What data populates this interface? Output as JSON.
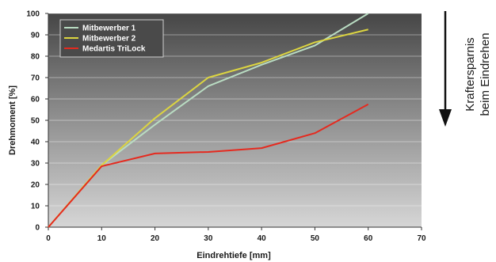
{
  "chart_data": {
    "type": "line",
    "xlabel": "Eindrehtiefe [mm]",
    "ylabel": "Drehmoment [%]",
    "xlim": [
      0,
      70
    ],
    "ylim": [
      0,
      100
    ],
    "x_ticks": [
      0,
      10,
      20,
      30,
      40,
      50,
      60,
      70
    ],
    "y_ticks": [
      0,
      10,
      20,
      30,
      40,
      50,
      60,
      70,
      80,
      90,
      100
    ],
    "grid": true,
    "legend_position": "top-left",
    "background": "vertical gradient, dark grey at top to light grey at bottom",
    "series": [
      {
        "name": "Mitbewerber 1",
        "color": "#b9dcc2",
        "x": [
          0,
          10,
          20,
          30,
          40,
          50,
          60
        ],
        "y": [
          0,
          29,
          48,
          66,
          76,
          85,
          100
        ]
      },
      {
        "name": "Mitbewerber 2",
        "color": "#dcd540",
        "x": [
          0,
          10,
          20,
          30,
          40,
          50,
          60
        ],
        "y": [
          0,
          29,
          51,
          70,
          77,
          86.5,
          92.5
        ]
      },
      {
        "name": "Medartis TriLock",
        "color": "#e52a1f",
        "x": [
          0,
          10,
          20,
          30,
          40,
          50,
          60
        ],
        "y": [
          0,
          28.5,
          34.5,
          35.2,
          37,
          44,
          57.5
        ]
      }
    ]
  },
  "side_note": {
    "line1": "Kraftersparnis",
    "line2": "beim Eindrehen",
    "arrow_icon": "down-arrow-icon"
  }
}
